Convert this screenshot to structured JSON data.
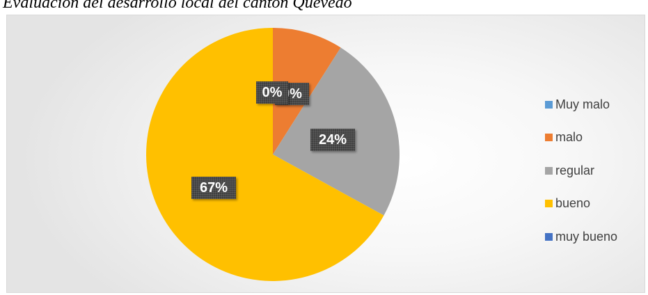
{
  "chart_data": {
    "type": "pie",
    "title": "Evaluación del desarrollo local del cantón Quevedo",
    "categories": [
      "Muy malo",
      "malo",
      "regular",
      "bueno",
      "muy bueno"
    ],
    "values": [
      0,
      9,
      24,
      67,
      0
    ],
    "colors": [
      "#5B9BD5",
      "#ED7D31",
      "#A5A5A5",
      "#FFC000",
      "#4472C4"
    ],
    "data_labels": [
      "0%",
      "9%",
      "24%",
      "67%",
      "0%"
    ],
    "legend_position": "right"
  }
}
